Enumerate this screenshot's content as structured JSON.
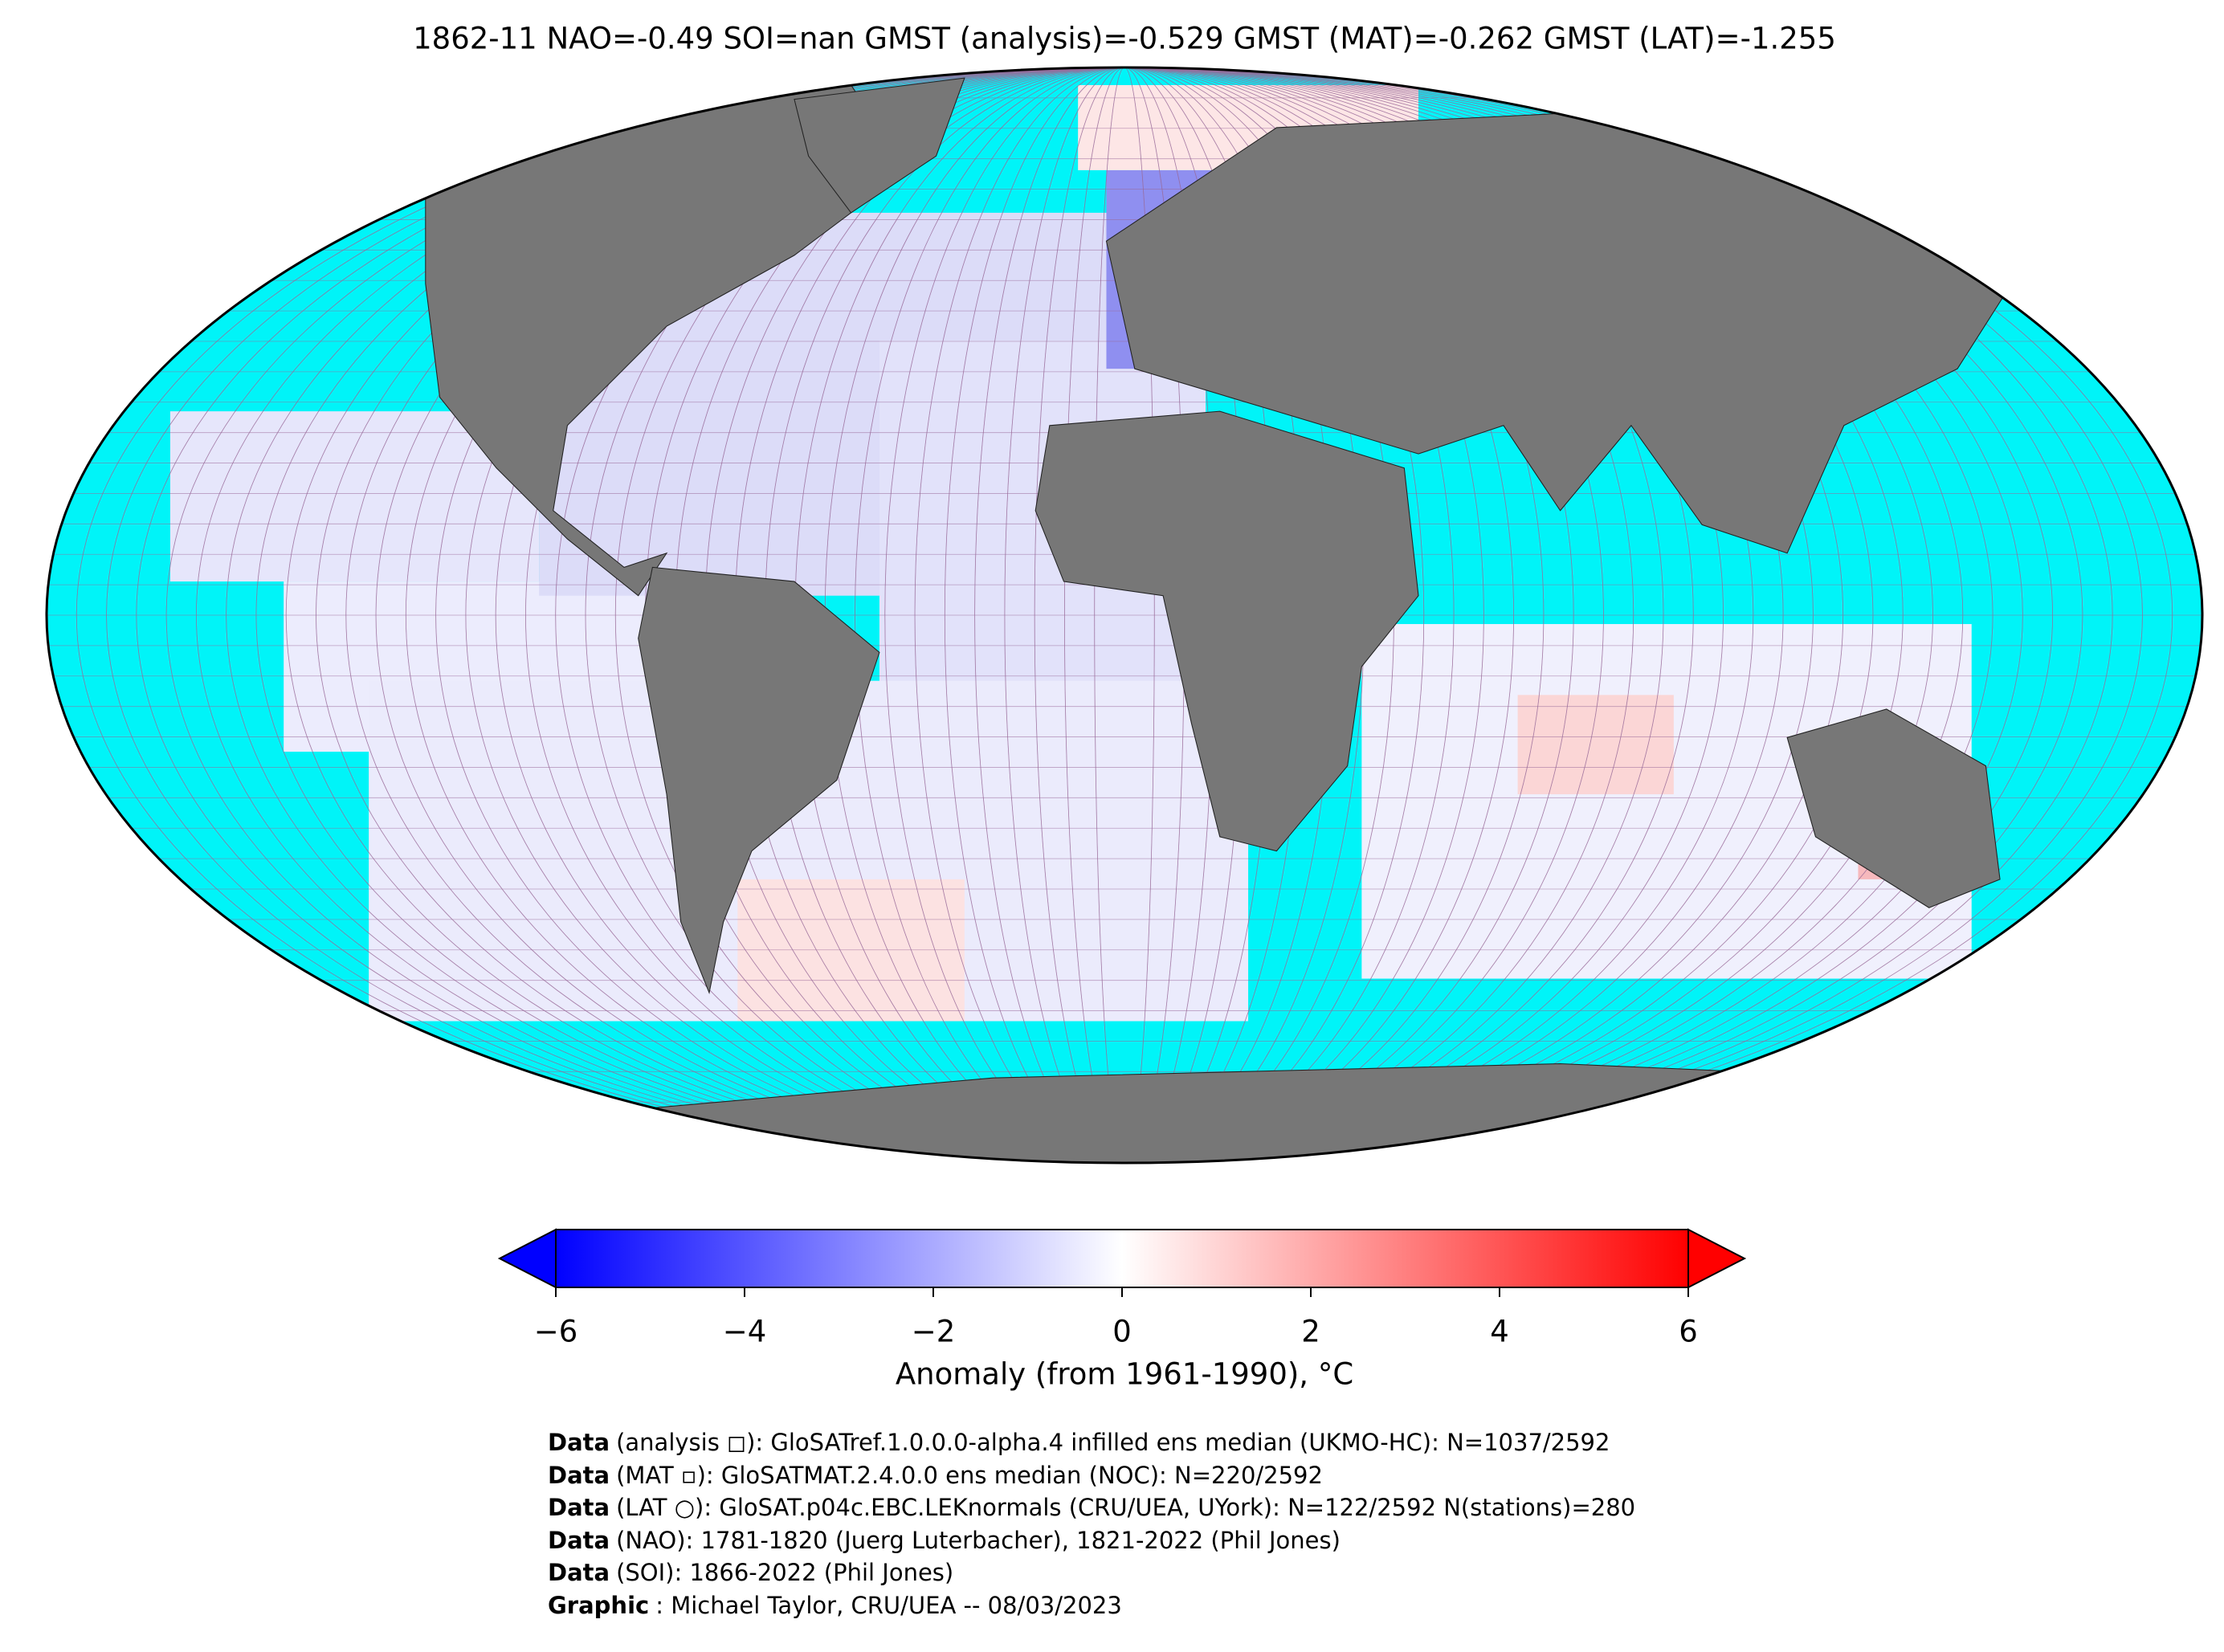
{
  "title": "1862-11 NAO=-0.49 SOI=nan GMST (analysis)=-0.529 GMST (MAT)=-0.262 GMST (LAT)=-1.255",
  "colorbar": {
    "label": "Anomaly (from 1961-1990), °C",
    "lim": [
      -6,
      6
    ],
    "ticks": [
      {
        "value": -6,
        "label": "−6"
      },
      {
        "value": -4,
        "label": "−4"
      },
      {
        "value": -2,
        "label": "−2"
      },
      0,
      2,
      4,
      6
    ],
    "colors": [
      "#0000ff",
      "#ffffff",
      "#ff0000"
    ]
  },
  "credits": [
    {
      "bold": "Data",
      "text": "(analysis ◻): GloSATref.1.0.0.0-alpha.4 infilled ens median (UKMO-HC): N=1037/2592"
    },
    {
      "bold": "Data",
      "text": "(MAT ▫): GloSATMAT.2.4.0.0 ens median (NOC): N=220/2592"
    },
    {
      "bold": "Data",
      "text": "(LAT ○): GloSAT.p04c.EBC.LEKnormals (CRU/UEA, UYork): N=122/2592 N(stations)=280"
    },
    {
      "bold": "Data",
      "text": "(NAO): 1781-1820 (Juerg Luterbacher), 1821-2022 (Phil Jones)"
    },
    {
      "bold": "Data",
      "text": "(SOI): 1866-2022 (Phil Jones)"
    },
    {
      "bold": "Graphic",
      "text": ": Michael Taylor, CRU/UEA -- 08/03/2023"
    }
  ]
}
